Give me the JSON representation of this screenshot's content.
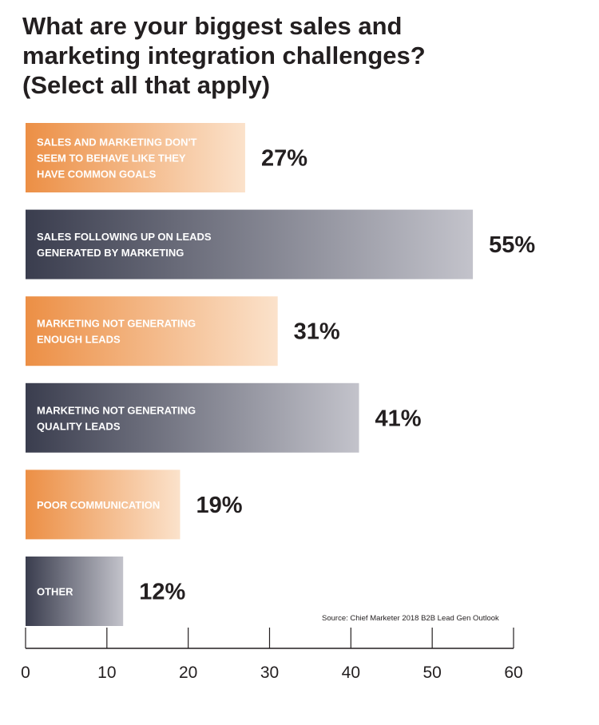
{
  "title_lines": [
    "What are your biggest sales and",
    "marketing integration challenges?",
    "(Select all that apply)"
  ],
  "source": "Source: Chief Marketer 2018 B2B Lead Gen Outlook",
  "colors": {
    "orange_start": "#ec8f45",
    "orange_end": "#fbe2cb",
    "gray_start": "#3a3d4e",
    "gray_end": "#c3c3cb",
    "text": "#231f20"
  },
  "chart_data": {
    "type": "bar",
    "orientation": "horizontal",
    "categories": [
      [
        "SALES AND MARKETING DON'T",
        "SEEM TO BEHAVE LIKE THEY",
        "HAVE COMMON GOALS"
      ],
      [
        "SALES FOLLOWING UP ON LEADS",
        "GENERATED BY MARKETING"
      ],
      [
        "MARKETING NOT GENERATING",
        "ENOUGH LEADS"
      ],
      [
        "MARKETING NOT GENERATING",
        "QUALITY LEADS"
      ],
      [
        "POOR COMMUNICATION"
      ],
      [
        "OTHER"
      ]
    ],
    "values": [
      27,
      55,
      31,
      41,
      19,
      12
    ],
    "value_labels": [
      "27%",
      "55%",
      "31%",
      "41%",
      "19%",
      "12%"
    ],
    "bar_colors": [
      "orange",
      "gray",
      "orange",
      "gray",
      "orange",
      "gray"
    ],
    "xlim": [
      0,
      60
    ],
    "xticks": [
      0,
      10,
      20,
      30,
      40,
      50,
      60
    ],
    "grid": false
  }
}
